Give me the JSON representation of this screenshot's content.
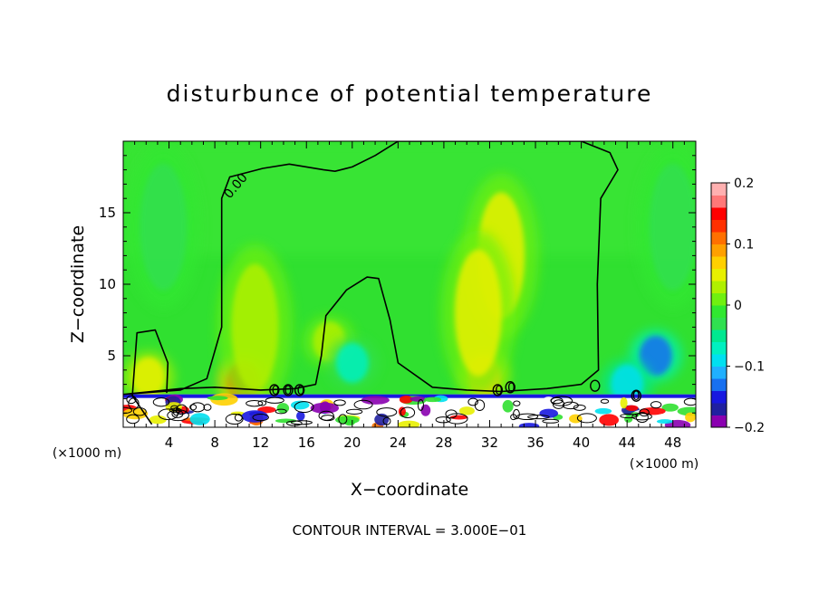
{
  "chart_data": {
    "type": "heatmap",
    "title": "disturbunce of potential temperature",
    "xlabel": "X−coordinate",
    "ylabel": "Z−coordinate",
    "x_unit_label": "(×1000 m)",
    "y_unit_label": "(×1000 m)",
    "footer": "CONTOUR INTERVAL = 3.000E−01",
    "xlim": [
      0,
      50
    ],
    "ylim": [
      0,
      20
    ],
    "x_ticks": [
      4,
      8,
      12,
      16,
      20,
      24,
      28,
      32,
      36,
      40,
      44,
      48
    ],
    "x_tick_labels": [
      "4",
      "8",
      "12",
      "16",
      "20",
      "24",
      "28",
      "32",
      "36",
      "40",
      "44",
      "48"
    ],
    "y_ticks": [
      5,
      10,
      15
    ],
    "y_tick_labels": [
      "5",
      "10",
      "15"
    ],
    "colorbar": {
      "range": [
        -0.2,
        0.2
      ],
      "ticks": [
        0.2,
        0.1,
        0,
        -0.1,
        -0.2
      ],
      "tick_labels": [
        "0.2",
        "0.1",
        "0",
        "−0.1",
        "−0.2"
      ],
      "colors": [
        "#8a00b0",
        "#2020a0",
        "#1818e0",
        "#1870f0",
        "#20b0ff",
        "#00e0f0",
        "#00f0c0",
        "#00e890",
        "#30e050",
        "#30e830",
        "#70f010",
        "#b0f000",
        "#e8f000",
        "#ffd000",
        "#ffa000",
        "#ff7000",
        "#ff3000",
        "#ff0000",
        "#ff7878",
        "#ffb0b0"
      ]
    },
    "contour_labels": [
      "0.00",
      "0",
      "0",
      "0",
      "0",
      "0",
      "0"
    ],
    "regions": [
      {
        "kind": "positive-blob",
        "x": 2.2,
        "z": 3.5,
        "value": 0.05
      },
      {
        "kind": "positive-blob",
        "x": 10.5,
        "z": 3.2,
        "value": 0.12
      },
      {
        "kind": "positive-blob",
        "x": 31.5,
        "z": 3.6,
        "value": 0.07
      },
      {
        "kind": "positive-blob",
        "x": 33,
        "z": 12,
        "value": 0.04
      },
      {
        "kind": "positive-blob",
        "x": 31,
        "z": 8,
        "value": 0.04
      },
      {
        "kind": "positive-blob",
        "x": 11.5,
        "z": 7,
        "value": 0.03
      },
      {
        "kind": "positive-blob",
        "x": 18,
        "z": 6,
        "value": 0.03
      },
      {
        "kind": "negative-blob",
        "x": 3.5,
        "z": 14,
        "value": -0.03
      },
      {
        "kind": "negative-blob",
        "x": 20,
        "z": 4.5,
        "value": -0.07
      },
      {
        "kind": "negative-blob",
        "x": 46.5,
        "z": 5,
        "value": -0.13
      },
      {
        "kind": "negative-blob",
        "x": 48,
        "z": 14,
        "value": -0.03
      },
      {
        "kind": "negative-blob",
        "x": 44,
        "z": 3,
        "value": -0.09
      }
    ],
    "contours": [
      {
        "value": 0,
        "path": [
          [
            2.5,
            0.2
          ],
          [
            0.8,
            2.2
          ],
          [
            1.2,
            6.6
          ],
          [
            2.8,
            6.8
          ],
          [
            3.9,
            4.5
          ],
          [
            3.8,
            2.4
          ]
        ]
      },
      {
        "value": 0,
        "path": [
          [
            0,
            2.3
          ],
          [
            5,
            2.6
          ],
          [
            7.3,
            3.4
          ],
          [
            8.6,
            7.0
          ],
          [
            8.6,
            12.0
          ],
          [
            8.6,
            16.0
          ],
          [
            9.3,
            17.5
          ],
          [
            12.2,
            18.1
          ],
          [
            14.5,
            18.4
          ],
          [
            17.5,
            18.0
          ],
          [
            18.5,
            17.9
          ],
          [
            20,
            18.2
          ],
          [
            22,
            19.0
          ],
          [
            24,
            20
          ],
          [
            38,
            20
          ],
          [
            40,
            20
          ],
          [
            42.5,
            19.2
          ],
          [
            43.2,
            18.0
          ],
          [
            41.7,
            16.0
          ],
          [
            41.4,
            10.0
          ],
          [
            41.5,
            4.0
          ],
          [
            40,
            3.0
          ],
          [
            37,
            2.7
          ],
          [
            33,
            2.5
          ],
          [
            30,
            2.6
          ],
          [
            27,
            2.8
          ],
          [
            24,
            4.5
          ],
          [
            23.3,
            7.5
          ],
          [
            22.3,
            10.4
          ],
          [
            21.3,
            10.5
          ],
          [
            19.5,
            9.6
          ],
          [
            17.7,
            7.8
          ],
          [
            17.3,
            5.0
          ],
          [
            16.8,
            3.0
          ],
          [
            15,
            2.7
          ],
          [
            12,
            2.6
          ],
          [
            8,
            2.8
          ],
          [
            5,
            2.7
          ],
          [
            0,
            2.3
          ]
        ]
      }
    ],
    "boundary_layer_top_z": 2.3
  }
}
